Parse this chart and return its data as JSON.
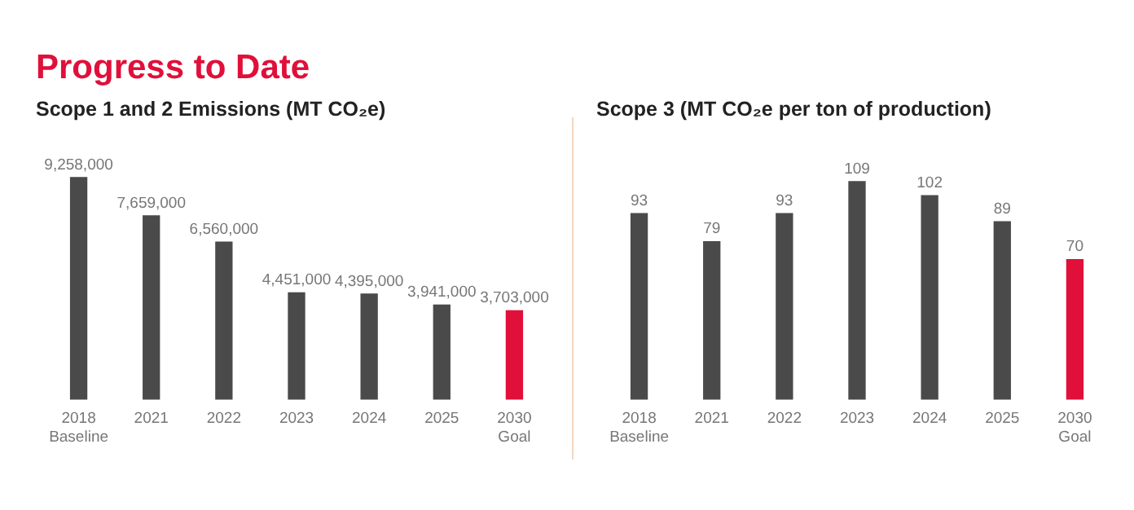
{
  "chart_data": [
    {
      "type": "bar",
      "title": "Progress to Date",
      "subtitle": "Scope 1 and 2 Emissions (MT CO₂e)",
      "categories": [
        "2018\nBaseline",
        "2021",
        "2022",
        "2023",
        "2024",
        "2025",
        "2030\nGoal"
      ],
      "values": [
        9258000,
        7659000,
        6560000,
        4451000,
        4395000,
        3941000,
        3703000
      ],
      "colors": [
        "#4a4a4a",
        "#4a4a4a",
        "#4a4a4a",
        "#4a4a4a",
        "#4a4a4a",
        "#4a4a4a",
        "#e0103a"
      ],
      "value_labels": [
        "9,258,000",
        "7,659,000",
        "6,560,000",
        "4,451,000",
        "4,395,000",
        "3,941,000",
        "3,703,000"
      ],
      "grid": false,
      "legend": false,
      "tick_labels": "x"
    },
    {
      "type": "bar",
      "subtitle": "Scope 3 (MT CO₂e per ton of production)",
      "categories": [
        "2018\nBaseline",
        "2021",
        "2022",
        "2023",
        "2024",
        "2025",
        "2030\nGoal"
      ],
      "values": [
        93,
        79,
        93,
        109,
        102,
        89,
        70
      ],
      "colors": [
        "#4a4a4a",
        "#4a4a4a",
        "#4a4a4a",
        "#4a4a4a",
        "#4a4a4a",
        "#4a4a4a",
        "#e0103a"
      ],
      "data_labels": true,
      "grid": false,
      "legend": false,
      "tick_labels": "x"
    }
  ]
}
